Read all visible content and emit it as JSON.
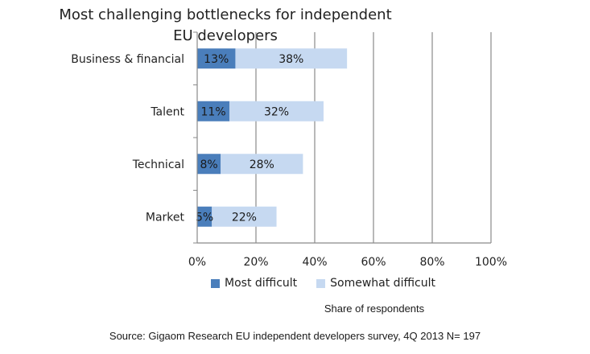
{
  "chart_data": {
    "type": "bar",
    "orientation": "horizontal",
    "stacked": true,
    "title": "Most challenging bottlenecks for independent EU developers",
    "xlabel": "Share of respondents",
    "categories": [
      "Business & financial",
      "Talent",
      "Technical",
      "Market"
    ],
    "series": [
      {
        "name": "Most difficult",
        "values": [
          13,
          11,
          8,
          5
        ],
        "labels": [
          "13%",
          "11%",
          "8%",
          "5%"
        ],
        "color": "#4a7ebb"
      },
      {
        "name": "Somewhat difficult",
        "values": [
          38,
          32,
          28,
          22
        ],
        "labels": [
          "38%",
          "32%",
          "28%",
          "22%"
        ],
        "color": "#c6d9f1"
      }
    ],
    "xlim": [
      0,
      100
    ],
    "xticks": [
      "0%",
      "20%",
      "40%",
      "60%",
      "80%",
      "100%"
    ],
    "grid": true,
    "legend_position": "bottom"
  },
  "source": "Source: Gigaom Research EU independent developers survey, 4Q 2013 N= 197"
}
